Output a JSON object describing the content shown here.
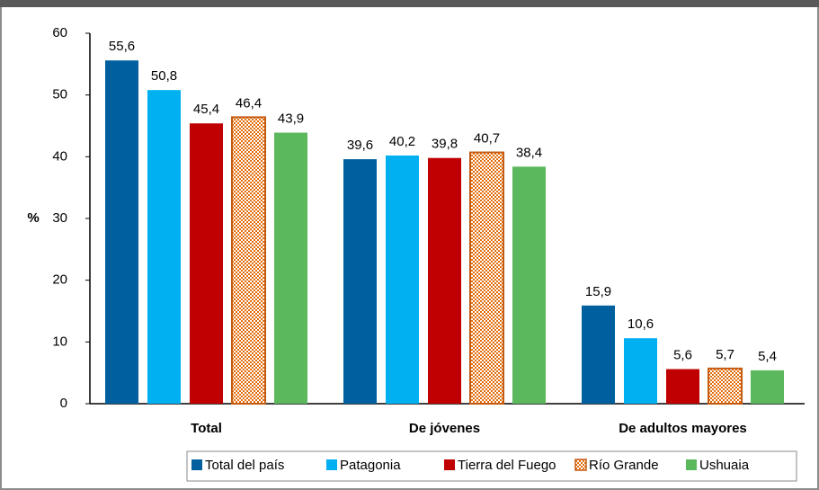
{
  "chart_data": {
    "type": "bar",
    "categories": [
      "Total",
      "De jóvenes",
      "De adultos mayores"
    ],
    "y_label": "%",
    "series": [
      {
        "name": "Total del país",
        "color": "#00609f",
        "values": [
          55.6,
          39.6,
          15.9
        ],
        "value_labels": [
          "55,6",
          "39,6",
          "15,9"
        ]
      },
      {
        "name": "Patagonia",
        "color": "#00b0f0",
        "values": [
          50.8,
          40.2,
          10.6
        ],
        "value_labels": [
          "50,8",
          "40,2",
          "10,6"
        ]
      },
      {
        "name": "Tierra del Fuego",
        "color": "#c00000",
        "values": [
          45.4,
          39.8,
          5.6
        ],
        "value_labels": [
          "45,4",
          "39,8",
          "5,6"
        ]
      },
      {
        "name": "Río Grande",
        "color": "#e46c0a",
        "pattern": "checker",
        "values": [
          46.4,
          40.7,
          5.7
        ],
        "value_labels": [
          "46,4",
          "40,7",
          "5,7"
        ]
      },
      {
        "name": "Ushuaia",
        "color": "#5cb85c",
        "values": [
          43.9,
          38.4,
          5.4
        ],
        "value_labels": [
          "43,9",
          "38,4",
          "5,4"
        ]
      }
    ],
    "ylim": [
      0,
      60
    ],
    "yticks": [
      0,
      10,
      20,
      30,
      40,
      50,
      60
    ],
    "grid": false,
    "legend": "bottom"
  }
}
